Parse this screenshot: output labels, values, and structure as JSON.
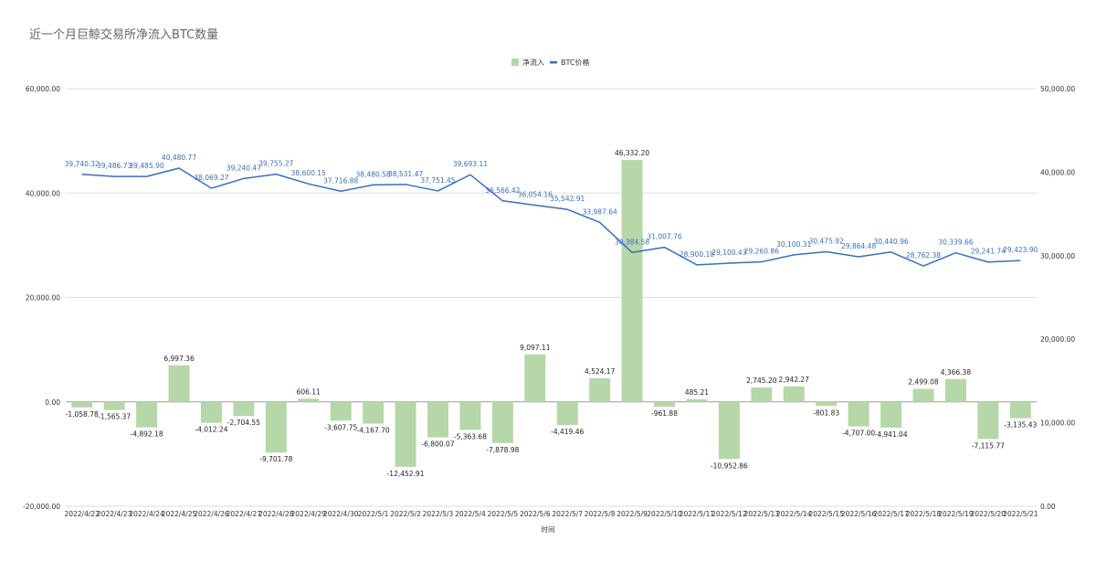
{
  "chart_data": {
    "type": "bar",
    "title": "近一个月巨鲸交易所净流入BTC数量",
    "xlabel": "时间",
    "ylabel": "",
    "y2label": "",
    "ylim": [
      -20000,
      60000
    ],
    "y2lim": [
      0,
      50000
    ],
    "yticks": [
      "-20,000.00",
      "0.00",
      "20,000.00",
      "40,000.00",
      "60,000.00"
    ],
    "y2ticks": [
      "0.00",
      "10,000.00",
      "20,000.00",
      "30,000.00",
      "40,000.00",
      "50,000.00"
    ],
    "grid": true,
    "legend_position": "top-center",
    "colors": {
      "bar": "#b6d7a8",
      "line": "#3a6fb5",
      "grid": "#dddddd",
      "zero": "#999999"
    },
    "categories": [
      "2022/4/22",
      "2022/4/23",
      "2022/4/24",
      "2022/4/25",
      "2022/4/26",
      "2022/4/27",
      "2022/4/28",
      "2022/4/29",
      "2022/4/30",
      "2022/5/1",
      "2022/5/2",
      "2022/5/3",
      "2022/5/4",
      "2022/5/5",
      "2022/5/6",
      "2022/5/7",
      "2022/5/8",
      "2022/5/9",
      "2022/5/10",
      "2022/5/11",
      "2022/5/12",
      "2022/5/13",
      "2022/5/14",
      "2022/5/15",
      "2022/5/16",
      "2022/5/17",
      "2022/5/18",
      "2022/5/19",
      "2022/5/20",
      "2022/5/21"
    ],
    "series": [
      {
        "name": "净流入",
        "type": "bar",
        "axis": "left",
        "values": [
          -1058.78,
          -1565.37,
          -4892.18,
          6997.36,
          -4012.24,
          -2704.55,
          -9701.78,
          606.11,
          -3607.75,
          -4167.7,
          -12452.91,
          -6800.07,
          -5363.68,
          -7878.98,
          9097.11,
          -4419.46,
          4524.17,
          46332.2,
          -961.88,
          485.21,
          -10952.86,
          2745.2,
          2942.27,
          -801.83,
          -4707.0,
          -4941.04,
          2499.08,
          4366.38,
          -7115.77,
          -3135.43
        ],
        "labels": [
          "-1,058.78",
          "-1,565.37",
          "-4,892.18",
          "6,997.36",
          "-4,012.24",
          "-2,704.55",
          "-9,701.78",
          "606.11",
          "-3,607.75",
          "-4,167.70",
          "-12,452.91",
          "-6,800.07",
          "-5,363.68",
          "-7,878.98",
          "9,097.11",
          "-4,419.46",
          "4,524.17",
          "46,332.20",
          "-961.88",
          "485.21",
          "-10,952.86",
          "2,745.20",
          "2,942.27",
          "-801.83",
          "-4,707.00",
          "-4,941.04",
          "2,499.08",
          "4,366.38",
          "-7,115.77",
          "-3,135.43"
        ]
      },
      {
        "name": "BTC价格",
        "type": "line",
        "axis": "right",
        "values": [
          39740.32,
          39486.73,
          39485.9,
          40480.77,
          38069.27,
          39240.47,
          39755.27,
          38600.15,
          37716.88,
          38480.58,
          38531.47,
          37751.45,
          39693.11,
          36566.42,
          36054.16,
          35542.91,
          33987.64,
          30384.58,
          31007.76,
          28900.18,
          29100.43,
          29260.86,
          30100.31,
          30475.92,
          29864.48,
          30440.96,
          28762.38,
          30339.66,
          29241.74,
          29423.9
        ],
        "labels": [
          "39,740.32",
          "39,486.73",
          "39,485.90",
          "40,480.77",
          "38,069.27",
          "39,240.47",
          "39,755.27",
          "38,600.15",
          "37,716.88",
          "38,480.58",
          "38,531.47",
          "37,751.45",
          "39,693.11",
          "36,566.42",
          "36,054.16",
          "35,542.91",
          "33,987.64",
          "30,384.58",
          "31,007.76",
          "28,900.18",
          "29,100.43",
          "29,260.86",
          "30,100.31",
          "30,475.92",
          "29,864.48",
          "30,440.96",
          "28,762.38",
          "30,339.66",
          "29,241.74",
          "29,423.90"
        ]
      }
    ]
  }
}
